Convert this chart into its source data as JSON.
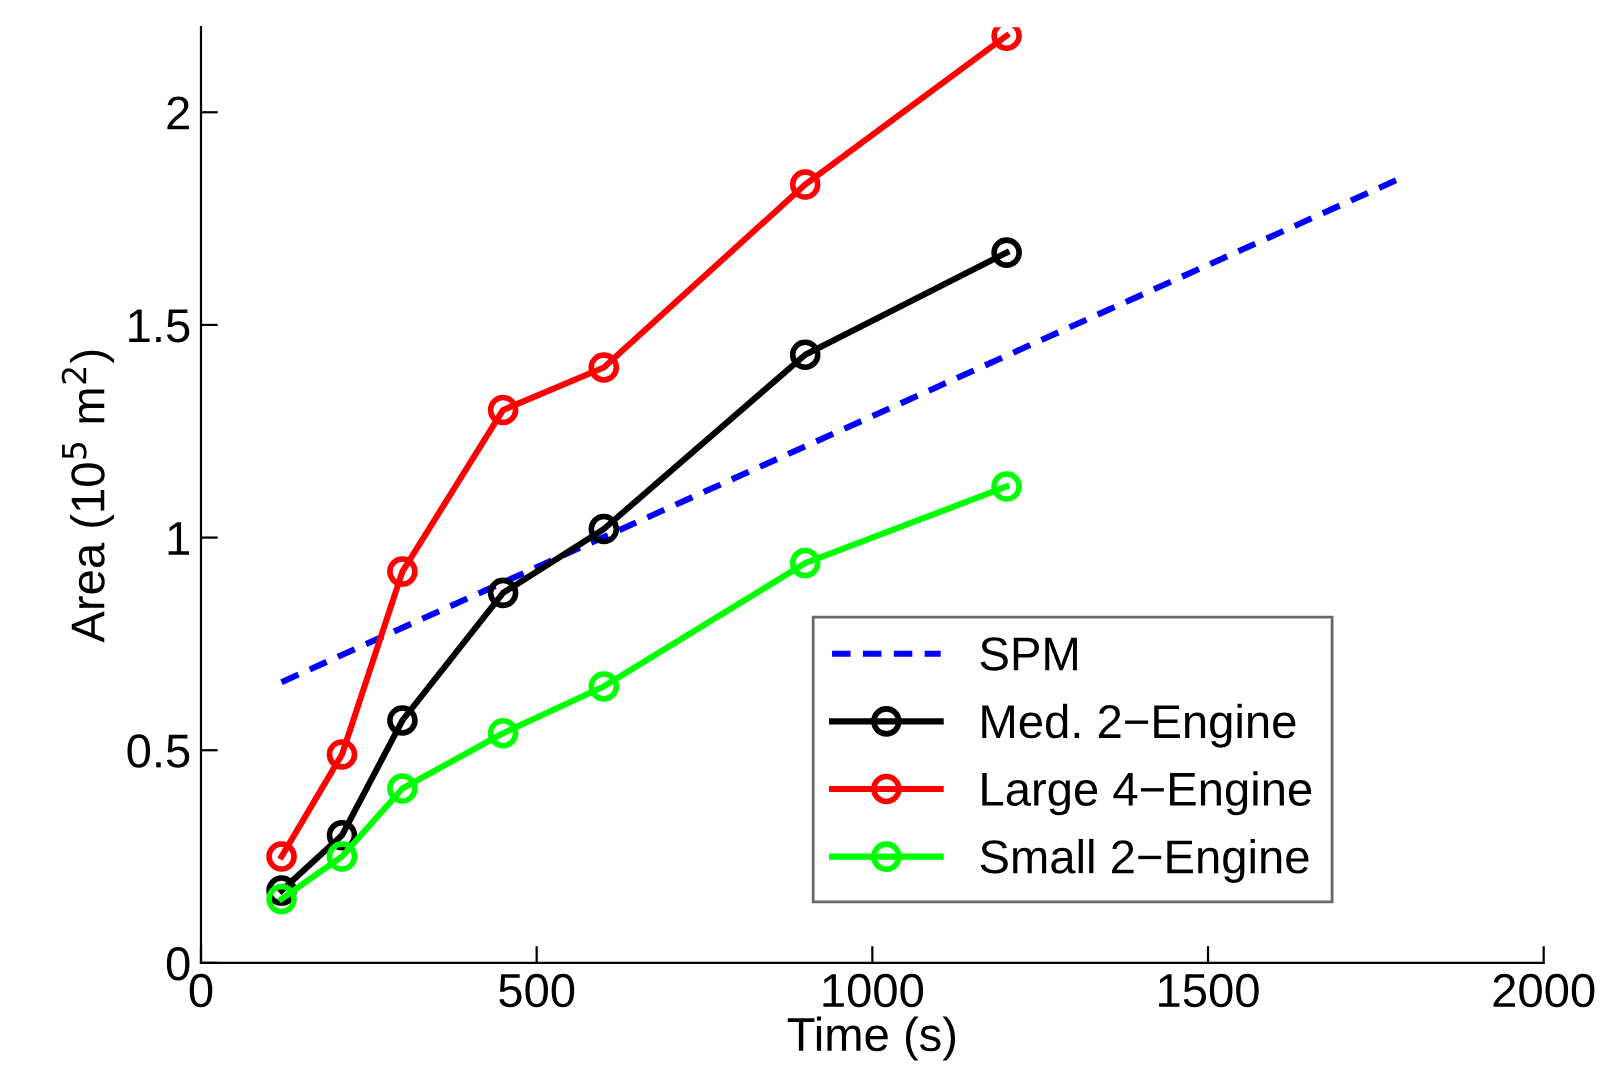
{
  "chart_data": {
    "type": "line",
    "xlabel": "Time (s)",
    "ylabel": "Area (10$^{5}$ m$^{2}$)",
    "xlim": [
      0,
      2000
    ],
    "xticks": [
      0,
      500,
      1000,
      1500,
      2000
    ],
    "ylim": [
      0,
      2.2
    ],
    "yticks": [
      0,
      0.5,
      1,
      1.5,
      2
    ],
    "grid": false,
    "legend": "bottom right",
    "marker": "circle",
    "series": [
      {
        "name": "SPM",
        "color": "#0000ff",
        "x": [
          120,
          1780
        ],
        "values": [
          0.66,
          1.84
        ],
        "line_style": "dashed",
        "marker": "none"
      },
      {
        "name": "Med. 2−Engine",
        "color": "#000000",
        "x": [
          120,
          210,
          300,
          450,
          600,
          900,
          1200
        ],
        "values": [
          0.17,
          0.3,
          0.57,
          0.87,
          1.02,
          1.43,
          1.67
        ]
      },
      {
        "name": "Large 4−Engine",
        "color": "#ff0000",
        "x": [
          120,
          210,
          300,
          450,
          600,
          900,
          1200
        ],
        "values": [
          0.25,
          0.49,
          0.92,
          1.3,
          1.4,
          1.83,
          2.18
        ]
      },
      {
        "name": "Small 2−Engine",
        "color": "#00ff00",
        "x": [
          120,
          210,
          300,
          450,
          600,
          900,
          1200
        ],
        "values": [
          0.15,
          0.25,
          0.41,
          0.54,
          0.65,
          0.94,
          1.12
        ]
      }
    ]
  }
}
